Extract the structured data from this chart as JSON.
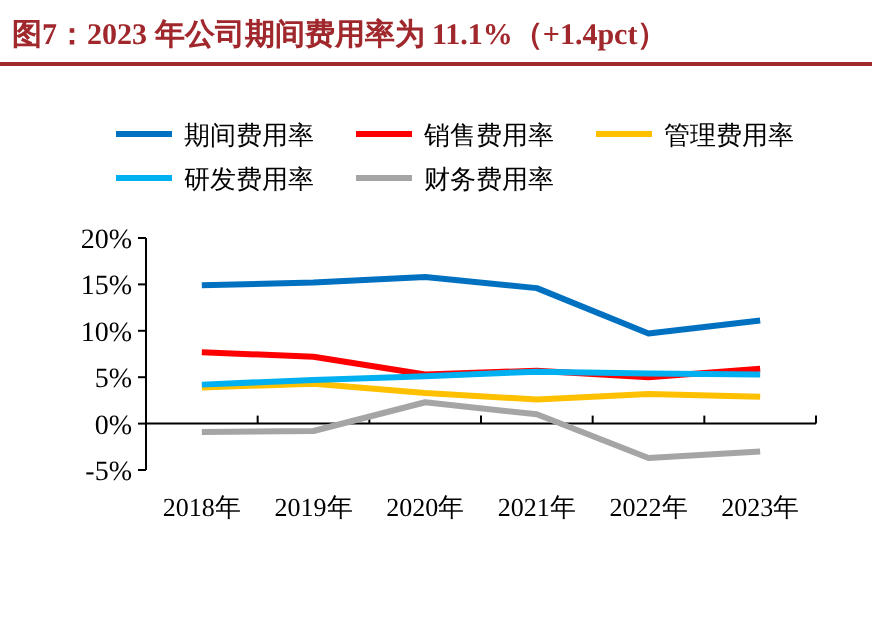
{
  "chart_data": {
    "type": "line",
    "title": "图7：2023 年公司期间费用率为 11.1%（+1.4pct）",
    "categories": [
      "2018年",
      "2019年",
      "2020年",
      "2021年",
      "2022年",
      "2023年"
    ],
    "series": [
      {
        "name": "期间费用率",
        "color": "#0070c0",
        "values": [
          14.9,
          15.2,
          15.8,
          14.6,
          9.7,
          11.1
        ]
      },
      {
        "name": "销售费用率",
        "color": "#ff0000",
        "values": [
          7.7,
          7.2,
          5.3,
          5.7,
          5.0,
          5.9
        ]
      },
      {
        "name": "管理费用率",
        "color": "#ffc000",
        "values": [
          3.9,
          4.3,
          3.3,
          2.6,
          3.2,
          2.9
        ]
      },
      {
        "name": "研发费用率",
        "color": "#00b0f0",
        "values": [
          4.2,
          4.7,
          5.1,
          5.6,
          5.4,
          5.3
        ]
      },
      {
        "name": "财务费用率",
        "color": "#a5a5a5",
        "values": [
          -0.9,
          -0.8,
          2.3,
          1.0,
          -3.7,
          -3.0
        ]
      }
    ],
    "ylim": [
      -5,
      20
    ],
    "yticks": [
      {
        "value": -5,
        "label": "-5%"
      },
      {
        "value": 0,
        "label": "0%"
      },
      {
        "value": 5,
        "label": "5%"
      },
      {
        "value": 10,
        "label": "10%"
      },
      {
        "value": 15,
        "label": "15%"
      },
      {
        "value": 20,
        "label": "20%"
      }
    ],
    "legend": "top",
    "marker": "none",
    "line_style": "solid"
  }
}
